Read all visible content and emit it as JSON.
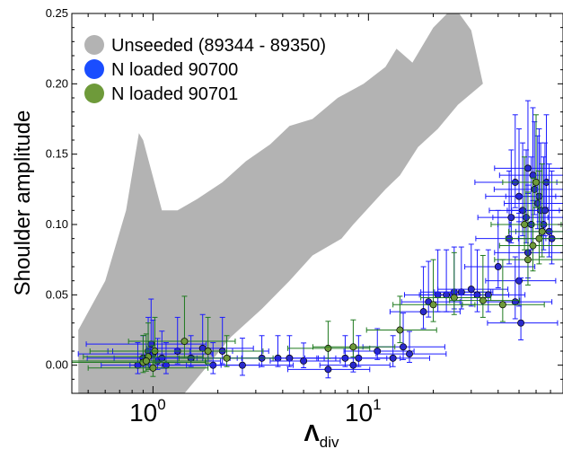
{
  "chart_data": {
    "type": "scatter",
    "title": "",
    "xlabel_main": "Λ",
    "xlabel_sub": "div",
    "ylabel": "Shoulder amplitude",
    "x_scale": "log",
    "xlim": [
      0.42,
      80
    ],
    "ylim": [
      -0.02,
      0.25
    ],
    "xticks": [
      {
        "value": 1,
        "base": "10",
        "exp": "0"
      },
      {
        "value": 10,
        "base": "10",
        "exp": "1"
      }
    ],
    "yticks": [
      {
        "value": 0.0,
        "label": "0.00"
      },
      {
        "value": 0.05,
        "label": "0.05"
      },
      {
        "value": 0.1,
        "label": "0.10"
      },
      {
        "value": 0.15,
        "label": "0.15"
      },
      {
        "value": 0.2,
        "label": "0.20"
      },
      {
        "value": 0.25,
        "label": "0.25"
      }
    ],
    "grid": false,
    "legend_position": "top-left",
    "series": [
      {
        "name": "Unseeded (89344 - 89350)",
        "kind": "band",
        "color": "#b3b3b3",
        "upper": [
          [
            0.45,
            0.025
          ],
          [
            0.6,
            0.06
          ],
          [
            0.75,
            0.11
          ],
          [
            0.86,
            0.165
          ],
          [
            0.9,
            0.16
          ],
          [
            1.1,
            0.11
          ],
          [
            1.3,
            0.11
          ],
          [
            1.6,
            0.118
          ],
          [
            2.1,
            0.13
          ],
          [
            2.7,
            0.145
          ],
          [
            3.5,
            0.157
          ],
          [
            4.3,
            0.17
          ],
          [
            5.5,
            0.175
          ],
          [
            7.2,
            0.19
          ],
          [
            9.5,
            0.2
          ],
          [
            12,
            0.212
          ],
          [
            13.5,
            0.225
          ],
          [
            16,
            0.215
          ],
          [
            20,
            0.24
          ],
          [
            25,
            0.255
          ],
          [
            30,
            0.238
          ],
          [
            34,
            0.2
          ]
        ],
        "lower": [
          [
            34,
            0.2
          ],
          [
            26,
            0.185
          ],
          [
            21,
            0.168
          ],
          [
            17,
            0.155
          ],
          [
            14,
            0.135
          ],
          [
            12,
            0.125
          ],
          [
            8.5,
            0.1
          ],
          [
            7.5,
            0.09
          ],
          [
            5.5,
            0.078
          ],
          [
            4.3,
            0.06
          ],
          [
            3.2,
            0.04
          ],
          [
            2.3,
            0.02
          ],
          [
            1.8,
            0.0
          ],
          [
            1.4,
            -0.02
          ],
          [
            0.45,
            -0.02
          ]
        ]
      },
      {
        "name": "N loaded  90700",
        "color": "#1a1aff",
        "marker_color": "#2a2acc",
        "points": [
          [
            0.85,
            0.0,
            0.08,
            0.01
          ],
          [
            0.9,
            0.005,
            0.45,
            0.01
          ],
          [
            0.95,
            0.01,
            0.35,
            0.015
          ],
          [
            1.0,
            0.008,
            0.55,
            0.015
          ],
          [
            1.05,
            0.003,
            0.6,
            0.01
          ],
          [
            1.1,
            0.005,
            0.4,
            0.012
          ],
          [
            1.15,
            0.0,
            0.5,
            0.01
          ],
          [
            0.98,
            0.015,
            0.5,
            0.02
          ],
          [
            1.3,
            0.01,
            0.5,
            0.015
          ],
          [
            1.5,
            0.005,
            0.4,
            0.01
          ],
          [
            1.7,
            0.012,
            0.45,
            0.015
          ],
          [
            1.9,
            0.0,
            0.4,
            0.01
          ],
          [
            2.1,
            0.01,
            0.4,
            0.015
          ],
          [
            2.6,
            0.0,
            0.45,
            0.012
          ],
          [
            3.2,
            0.005,
            0.5,
            0.01
          ],
          [
            3.8,
            0.005,
            0.4,
            0.01
          ],
          [
            4.3,
            0.005,
            0.4,
            0.01
          ],
          [
            5.0,
            0.003,
            0.3,
            0.008
          ],
          [
            6.5,
            -0.003,
            0.35,
            0.01
          ],
          [
            7.8,
            0.005,
            0.35,
            0.01
          ],
          [
            8.5,
            0.0,
            0.3,
            0.008
          ],
          [
            9.0,
            0.005,
            0.35,
            0.01
          ],
          [
            11,
            0.01,
            0.3,
            0.01
          ],
          [
            13,
            0.005,
            0.3,
            0.01
          ],
          [
            14.5,
            0.013,
            0.35,
            0.015
          ],
          [
            15.5,
            0.008,
            0.3,
            0.01
          ],
          [
            18,
            0.038,
            0.3,
            0.02
          ],
          [
            19,
            0.045,
            0.25,
            0.018
          ],
          [
            21,
            0.05,
            0.3,
            0.02
          ],
          [
            23,
            0.05,
            0.25,
            0.02
          ],
          [
            25,
            0.052,
            0.3,
            0.02
          ],
          [
            27,
            0.052,
            0.25,
            0.02
          ],
          [
            30,
            0.054,
            0.3,
            0.02
          ],
          [
            32,
            0.05,
            0.25,
            0.02
          ],
          [
            36,
            0.05,
            0.3,
            0.02
          ],
          [
            40,
            0.07,
            0.3,
            0.025
          ],
          [
            45,
            0.09,
            0.3,
            0.03
          ],
          [
            48,
            0.13,
            0.35,
            0.03
          ],
          [
            50,
            0.12,
            0.3,
            0.03
          ],
          [
            52,
            0.11,
            0.3,
            0.03
          ],
          [
            54,
            0.105,
            0.3,
            0.03
          ],
          [
            55,
            0.08,
            0.3,
            0.03
          ],
          [
            57,
            0.1,
            0.3,
            0.03
          ],
          [
            59,
            0.125,
            0.35,
            0.03
          ],
          [
            61,
            0.115,
            0.3,
            0.03
          ],
          [
            63,
            0.11,
            0.3,
            0.03
          ],
          [
            65,
            0.1,
            0.3,
            0.03
          ],
          [
            67,
            0.13,
            0.3,
            0.03
          ],
          [
            69,
            0.095,
            0.3,
            0.03
          ],
          [
            71,
            0.09,
            0.3,
            0.03
          ],
          [
            50,
            0.06,
            0.3,
            0.03
          ],
          [
            48,
            0.045,
            0.3,
            0.02
          ],
          [
            51,
            0.03,
            0.3,
            0.02
          ],
          [
            55,
            0.14,
            0.3,
            0.03
          ],
          [
            58,
            0.135,
            0.3,
            0.03
          ],
          [
            62,
            0.12,
            0.3,
            0.03
          ],
          [
            66,
            0.11,
            0.3,
            0.03
          ],
          [
            46,
            0.105,
            0.3,
            0.03
          ]
        ]
      },
      {
        "name": "N loaded  90701",
        "color": "#1f7a1f",
        "marker_color": "#6e9a3a",
        "points": [
          [
            0.9,
            0.002,
            0.6,
            0.012
          ],
          [
            0.95,
            0.006,
            0.5,
            0.015
          ],
          [
            1.0,
            -0.002,
            0.5,
            0.01
          ],
          [
            1.02,
            0.01,
            0.5,
            0.015
          ],
          [
            0.93,
            0.003,
            0.55,
            0.012
          ],
          [
            1.4,
            0.017,
            0.45,
            0.02
          ],
          [
            1.8,
            0.01,
            0.5,
            0.015
          ],
          [
            2.2,
            0.005,
            0.4,
            0.01
          ],
          [
            6.5,
            0.012,
            0.35,
            0.012
          ],
          [
            8.5,
            0.013,
            0.35,
            0.012
          ],
          [
            14,
            0.025,
            0.3,
            0.015
          ],
          [
            20,
            0.043,
            0.35,
            0.02
          ],
          [
            25,
            0.048,
            0.3,
            0.02
          ],
          [
            34,
            0.046,
            0.3,
            0.02
          ],
          [
            42,
            0.043,
            0.35,
            0.02
          ],
          [
            55,
            0.075,
            0.3,
            0.03
          ],
          [
            58,
            0.085,
            0.3,
            0.03
          ],
          [
            62,
            0.09,
            0.3,
            0.03
          ],
          [
            64,
            0.095,
            0.3,
            0.03
          ],
          [
            53,
            0.1,
            0.3,
            0.03
          ],
          [
            60,
            0.13,
            0.3,
            0.03
          ]
        ]
      }
    ]
  }
}
